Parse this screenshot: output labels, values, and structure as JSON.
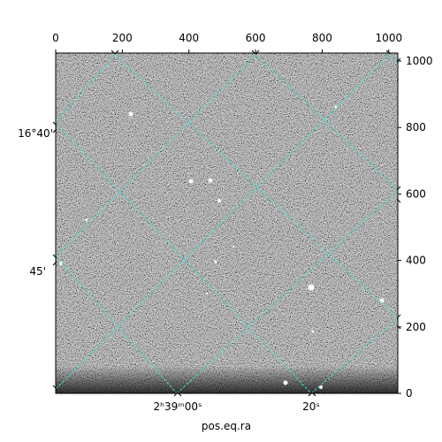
{
  "chart_data": {
    "type": "image",
    "xlabel": "pos.eq.ra",
    "xlim": [
      0,
      1027
    ],
    "ylim": [
      0,
      1024
    ],
    "xticks": [
      0,
      200,
      400,
      600,
      800,
      1000
    ],
    "yticks": [
      0,
      200,
      400,
      600,
      800,
      1000
    ],
    "ra_tick_labels": [
      "2ʰ39ᵐ00ˢ",
      "20ˢ"
    ],
    "dec_tick_labels": [
      "16°40'",
      "45'"
    ],
    "grid_color": "#40e0d0"
  }
}
